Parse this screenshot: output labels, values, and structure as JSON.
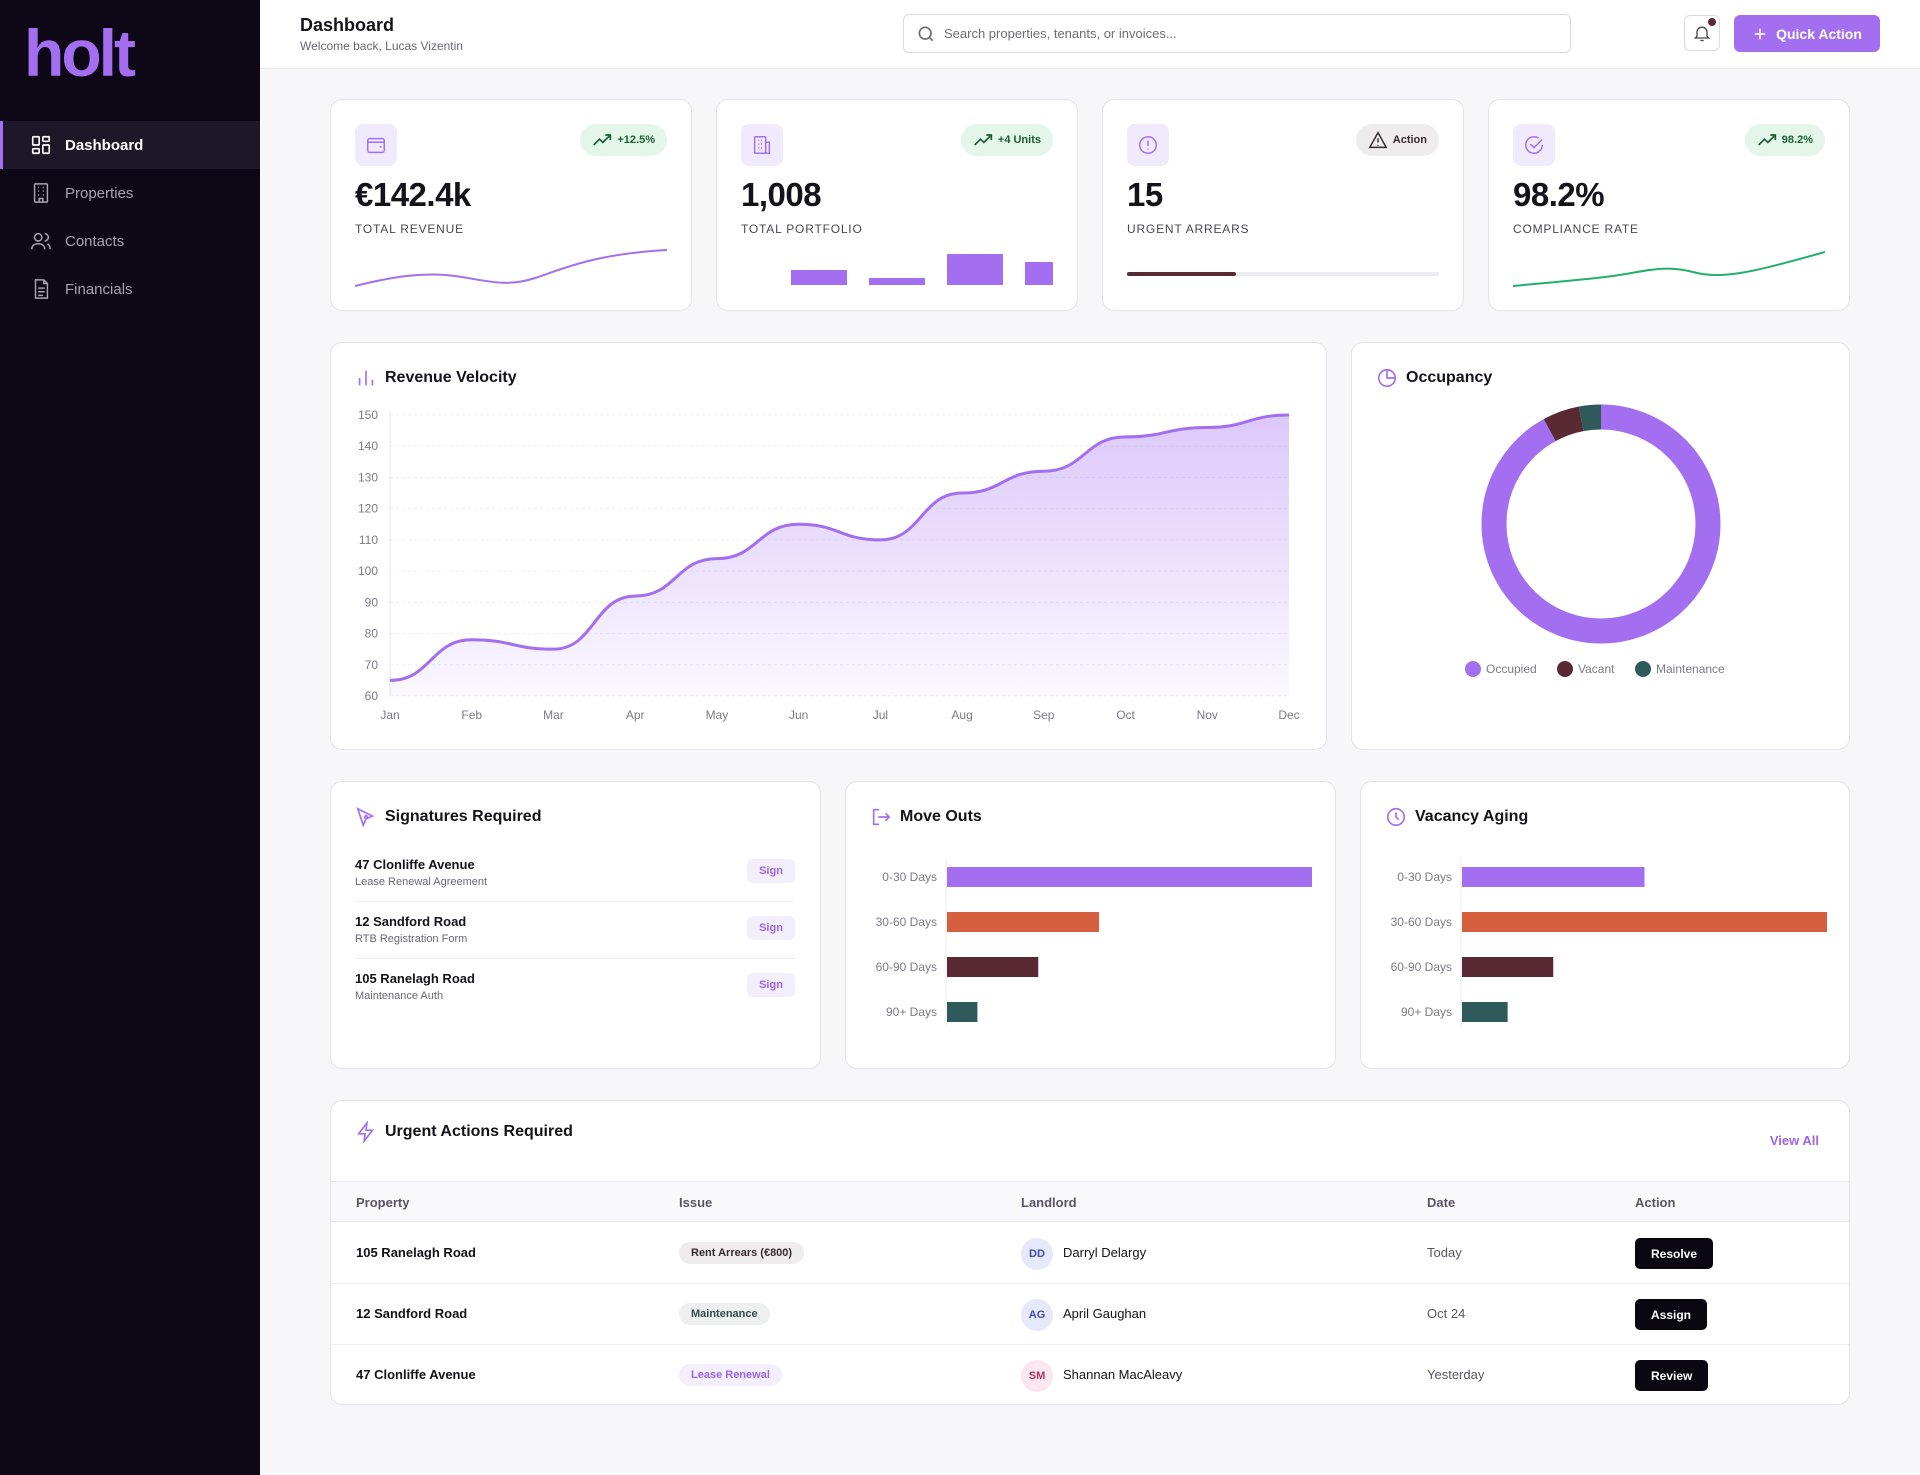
{
  "app": {
    "logo": "holt",
    "accent": "#a36ff0"
  },
  "sidebar": {
    "items": [
      {
        "label": "Dashboard",
        "icon": "grid-icon",
        "active": true
      },
      {
        "label": "Properties",
        "icon": "building-icon",
        "active": false
      },
      {
        "label": "Contacts",
        "icon": "users-icon",
        "active": false
      },
      {
        "label": "Financials",
        "icon": "document-icon",
        "active": false
      }
    ]
  },
  "header": {
    "title": "Dashboard",
    "subtitle": "Welcome back, Lucas Vizentin",
    "search_placeholder": "Search properties, tenants, or invoices...",
    "quick_action_label": "Quick Action"
  },
  "kpis": [
    {
      "value": "€142.4k",
      "label": "TOTAL REVENUE",
      "badge": "+12.5%",
      "icon": "wallet-icon"
    },
    {
      "value": "1,008",
      "label": "TOTAL PORTFOLIO",
      "badge": "+4 Units",
      "icon": "building-icon"
    },
    {
      "value": "15",
      "label": "URGENT ARREARS",
      "badge": "Action",
      "icon": "alert-circle-icon",
      "progress": 0.35
    },
    {
      "value": "98.2%",
      "label": "COMPLIANCE RATE",
      "badge": "98.2%",
      "icon": "check-circle-icon"
    }
  ],
  "revenue_velocity": {
    "title": "Revenue Velocity",
    "chart_data": {
      "type": "area",
      "categories": [
        "Jan",
        "Feb",
        "Mar",
        "Apr",
        "May",
        "Jun",
        "Jul",
        "Aug",
        "Sep",
        "Oct",
        "Nov",
        "Dec"
      ],
      "values": [
        65,
        78,
        75,
        92,
        104,
        115,
        110,
        125,
        132,
        143,
        146,
        150
      ],
      "yticks": [
        150,
        140,
        130,
        120,
        110,
        100,
        90,
        80,
        70,
        60
      ],
      "ylim": [
        60,
        150
      ],
      "color": "#a36ff0"
    }
  },
  "occupancy": {
    "title": "Occupancy",
    "chart_data": {
      "type": "pie",
      "labels": [
        "Occupied",
        "Vacant",
        "Maintenance"
      ],
      "values": [
        92,
        5,
        3
      ],
      "colors": [
        "#a36ff0",
        "#5a2a34",
        "#2f5a5c"
      ]
    }
  },
  "signatures": {
    "title": "Signatures Required",
    "items": [
      {
        "name": "47 Clonliffe Avenue",
        "desc": "Lease Renewal Agreement",
        "button": "Sign"
      },
      {
        "name": "12 Sandford Road",
        "desc": "RTB Registration Form",
        "button": "Sign"
      },
      {
        "name": "105 Ranelagh Road",
        "desc": "Maintenance Auth",
        "button": "Sign"
      }
    ]
  },
  "move_outs": {
    "title": "Move Outs",
    "chart_data": {
      "type": "bar",
      "categories": [
        "0-30 Days",
        "30-60 Days",
        "60-90 Days",
        "90+ Days"
      ],
      "values": [
        12,
        5,
        3,
        1
      ],
      "colors": [
        "#a36ff0",
        "#d65f3f",
        "#5a2a34",
        "#2f5a5c"
      ]
    }
  },
  "vacancy_aging": {
    "title": "Vacancy Aging",
    "chart_data": {
      "type": "bar",
      "categories": [
        "0-30 Days",
        "30-60 Days",
        "60-90 Days",
        "90+ Days"
      ],
      "values": [
        4,
        8,
        2,
        1
      ],
      "colors": [
        "#a36ff0",
        "#d65f3f",
        "#5a2a34",
        "#2f5a5c"
      ]
    }
  },
  "urgent": {
    "title": "Urgent Actions Required",
    "view_all": "View All",
    "columns": [
      "Property",
      "Issue",
      "Landlord",
      "Date",
      "Action"
    ],
    "rows": [
      {
        "property": "105 Ranelagh Road",
        "issue": "Rent Arrears (€800)",
        "initials": "DD",
        "landlord": "Darryl Delargy",
        "date": "Today",
        "action": "Resolve"
      },
      {
        "property": "12 Sandford Road",
        "issue": "Maintenance",
        "initials": "AG",
        "landlord": "April Gaughan",
        "date": "Oct 24",
        "action": "Assign"
      },
      {
        "property": "47 Clonliffe Avenue",
        "issue": "Lease Renewal",
        "initials": "SM",
        "landlord": "Shannan MacAleavy",
        "date": "Yesterday",
        "action": "Review"
      }
    ]
  }
}
